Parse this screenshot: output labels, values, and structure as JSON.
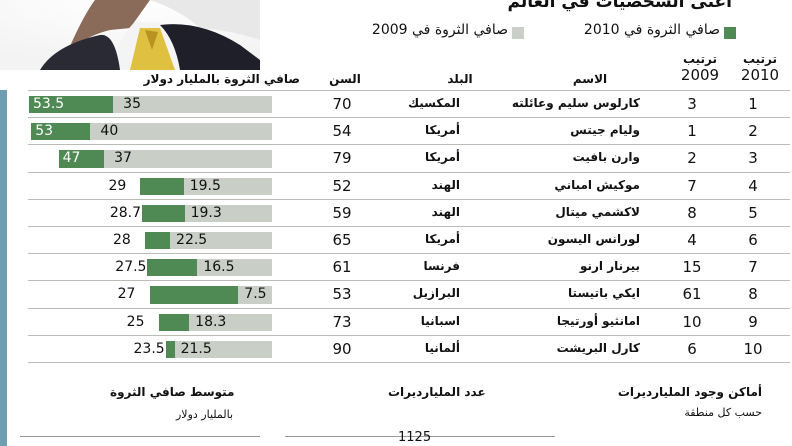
{
  "header": {
    "title": "أغنى الشخصيات في العالم",
    "legend_2010": "صافي الثروة في 2010",
    "legend_2009": "صافي الثروة في 2009"
  },
  "columns": {
    "rank_2010": "ترتيب",
    "rank_2010_year": "2010",
    "rank_2009": "ترتيب",
    "rank_2009_year": "2009",
    "name": "الاسم",
    "country": "البلد",
    "age": "السن",
    "net_worth": "صافي الثروة بالمليار دولار"
  },
  "footer": {
    "locations_title": "أماكن وجود المليارديرات",
    "locations_sub": "حسب كل منطقة",
    "count_title": "عدد المليارديرات",
    "count_value": "1125",
    "avg_title": "متوسط صافي الثروة",
    "avg_sub": "بالمليار دولار"
  },
  "colors": {
    "bar_2010": "#4f8a55",
    "bar_2009": "#c9cec6"
  },
  "chart_data": {
    "type": "bar",
    "title": "أغنى الشخصيات في العالم",
    "unit": "صافي الثروة بالمليار دولار",
    "series": [
      {
        "name": "صافي الثروة في 2010",
        "values": [
          53.5,
          53,
          47,
          29,
          28.7,
          28,
          27.5,
          27,
          25,
          23.5
        ]
      },
      {
        "name": "صافي الثروة في 2009",
        "values": [
          35,
          40,
          37,
          19.5,
          19.3,
          22.5,
          16.5,
          7.5,
          18.3,
          21.5
        ]
      }
    ],
    "rows": [
      {
        "rank_2010": "1",
        "rank_2009": "3",
        "name": "كارلوس سليم وعائلته",
        "country": "المكسيك",
        "age": "70",
        "v2010": 53.5,
        "v2009": 35
      },
      {
        "rank_2010": "2",
        "rank_2009": "1",
        "name": "وليام جيتس",
        "country": "أمريكا",
        "age": "54",
        "v2010": 53,
        "v2009": 40
      },
      {
        "rank_2010": "3",
        "rank_2009": "2",
        "name": "وارن بافيت",
        "country": "أمريكا",
        "age": "79",
        "v2010": 47,
        "v2009": 37
      },
      {
        "rank_2010": "4",
        "rank_2009": "7",
        "name": "موكيش امباني",
        "country": "الهند",
        "age": "52",
        "v2010": 29,
        "v2009": 19.5
      },
      {
        "rank_2010": "5",
        "rank_2009": "8",
        "name": "لاكشمي ميتال",
        "country": "الهند",
        "age": "59",
        "v2010": 28.7,
        "v2009": 19.3
      },
      {
        "rank_2010": "6",
        "rank_2009": "4",
        "name": "لورانس اليسون",
        "country": "أمريكا",
        "age": "65",
        "v2010": 28,
        "v2009": 22.5
      },
      {
        "rank_2010": "7",
        "rank_2009": "15",
        "name": "بيرنار ارنو",
        "country": "فرنسا",
        "age": "61",
        "v2010": 27.5,
        "v2009": 16.5
      },
      {
        "rank_2010": "8",
        "rank_2009": "61",
        "name": "ايكي باتيستا",
        "country": "البرازيل",
        "age": "53",
        "v2010": 27,
        "v2009": 7.5
      },
      {
        "rank_2010": "9",
        "rank_2009": "10",
        "name": "امانثيو أورتيجا",
        "country": "اسبانيا",
        "age": "73",
        "v2010": 25,
        "v2009": 18.3
      },
      {
        "rank_2010": "10",
        "rank_2009": "6",
        "name": "كارل البريشت",
        "country": "ألمانيا",
        "age": "90",
        "v2010": 23.5,
        "v2009": 21.5
      }
    ]
  }
}
